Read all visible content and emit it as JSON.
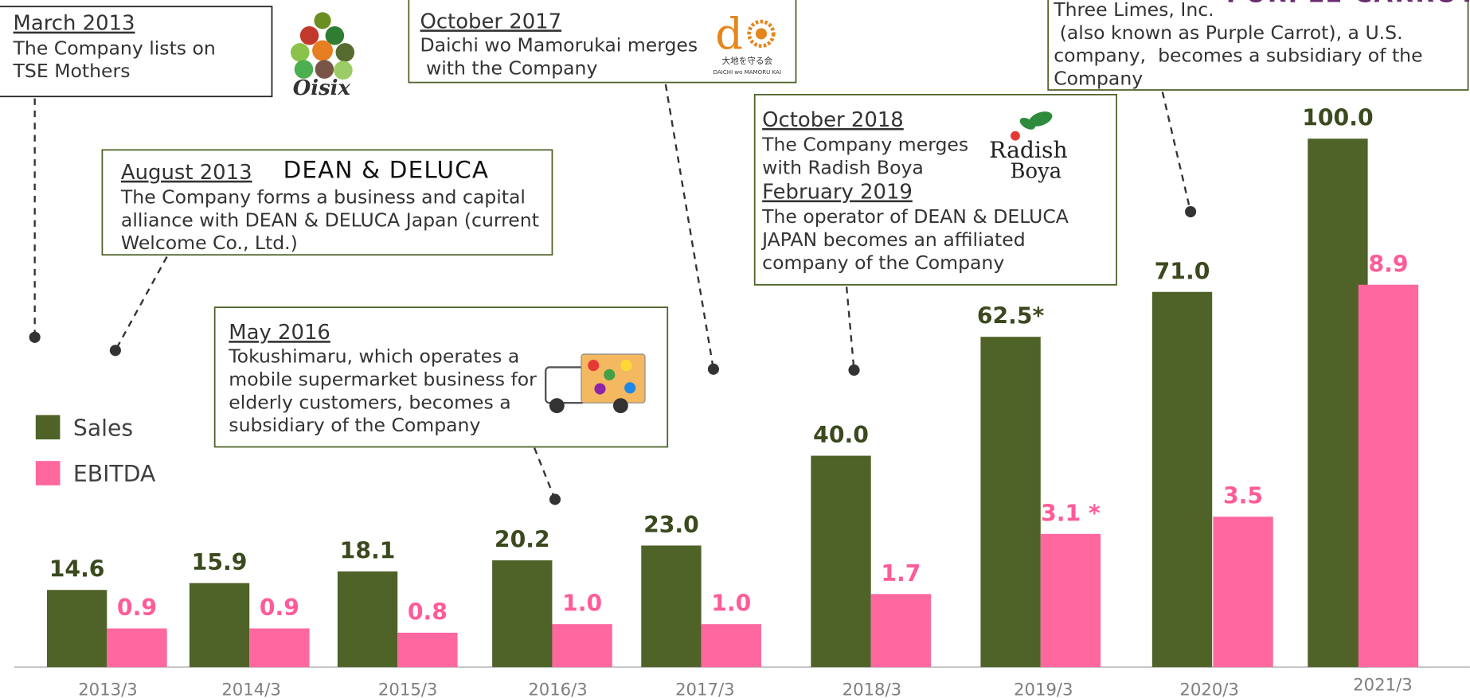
{
  "chart_data": {
    "type": "bar",
    "categories": [
      "2013/3",
      "2014/3",
      "2015/3",
      "2016/3",
      "2017/3",
      "2018/3",
      "2019/3",
      "2020/3",
      "2021/3"
    ],
    "series": [
      {
        "name": "Sales",
        "color": "#4f6228",
        "label_color": "#3b4a1e",
        "values": [
          14.6,
          15.9,
          18.1,
          20.2,
          23,
          40,
          62.5,
          71,
          100
        ],
        "value_labels": [
          "14.6",
          "15.9",
          "18.1",
          "20.2",
          "23.0",
          "40.0",
          "62.5*",
          "71.0",
          "100.0"
        ]
      },
      {
        "name": "EBITDA",
        "color": "#ff679f",
        "label_color": "#ff5b99",
        "axis": "y2",
        "values": [
          0.9,
          0.9,
          0.8,
          1,
          1,
          1.7,
          3.1,
          3.5,
          8.9
        ],
        "value_labels": [
          "0.9",
          "0.9",
          "0.8",
          "1.0",
          "1.0",
          "1.7",
          "3.1 *",
          "3.5",
          "8.9"
        ]
      }
    ],
    "ylim": [
      0,
      100
    ],
    "y2lim": [
      0,
      12.3
    ],
    "legend": "left",
    "annotations": [
      {
        "blocks": [
          {
            "date": "March 2013",
            "lines": [
              "The Company lists on",
              "TSE Mothers"
            ]
          }
        ],
        "logo": [
          "Oisix"
        ]
      },
      {
        "blocks": [
          {
            "date": "August 2013",
            "lines": [
              "The Company forms a business and capital",
              "alliance with DEAN & DELUCA Japan (current",
              "Welcome Co., Ltd.)"
            ]
          }
        ],
        "logo": [
          "DEAN & DELUCA"
        ]
      },
      {
        "blocks": [
          {
            "date": "May 2016",
            "lines": [
              "Tokushimaru, which operates a",
              "mobile supermarket business for",
              "elderly customers, becomes a",
              "subsidiary of the Company"
            ]
          }
        ],
        "logo": []
      },
      {
        "blocks": [
          {
            "date": "October 2017",
            "lines": [
              "Daichi wo Mamorukai merges",
              " with the Company"
            ]
          }
        ],
        "logo": [
          "d",
          "大地を守る会",
          "DAICHI wo MAMORU KAI"
        ]
      },
      {
        "blocks": [
          {
            "date": "October 2018",
            "lines": [
              "The Company merges",
              "with Radish Boya"
            ]
          },
          {
            "date": "February 2019",
            "lines": [
              "The operator of DEAN & DELUCA",
              "JAPAN becomes an affiliated",
              "company of the Company"
            ]
          }
        ],
        "logo": [
          "Radish",
          "Boya"
        ]
      },
      {
        "blocks": [
          {
            "lines": [
              "Three Limes, Inc.",
              " (also known as Purple Carrot), a U.S.",
              "company,  becomes a subsidiary of the",
              "Company"
            ]
          }
        ],
        "logo": [
          "PURPLE CARROT"
        ]
      }
    ]
  }
}
